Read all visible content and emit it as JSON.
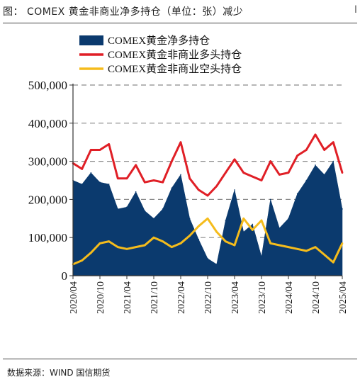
{
  "header": {
    "title": "图：  COMEX 黄金非商业净多持仓（单位：张）减少",
    "corner": "I"
  },
  "footer": {
    "source": "数据来源：WIND  国信期货"
  },
  "colors": {
    "net": "#0b3a6e",
    "long": "#e01f26",
    "short": "#f5bc1c",
    "grid": "#8a8a8a",
    "axis": "#333333"
  },
  "chart_data": {
    "type": "area",
    "title": "",
    "xlabel": "",
    "ylabel": "",
    "ylim": [
      0,
      500000
    ],
    "yticks": [
      0,
      100000,
      200000,
      300000,
      400000,
      500000
    ],
    "ytick_labels": [
      "0",
      "100,000",
      "200,000",
      "300,000",
      "400,000",
      "500,000"
    ],
    "xlim": [
      "2020-04",
      "2025-04"
    ],
    "xtick_labels": [
      "2020/04",
      "2020/10",
      "2021/04",
      "2021/10",
      "2022/04",
      "2022/10",
      "2023/04",
      "2023/10",
      "2024/04",
      "2024/10",
      "2025/04"
    ],
    "grid": "horizontal dashed",
    "legend_position": "top-left",
    "x": [
      "2020-04",
      "2020-06",
      "2020-08",
      "2020-10",
      "2020-12",
      "2021-02",
      "2021-04",
      "2021-06",
      "2021-08",
      "2021-10",
      "2021-12",
      "2022-02",
      "2022-04",
      "2022-06",
      "2022-08",
      "2022-10",
      "2022-12",
      "2023-02",
      "2023-04",
      "2023-06",
      "2023-08",
      "2023-10",
      "2023-12",
      "2024-02",
      "2024-04",
      "2024-06",
      "2024-08",
      "2024-10",
      "2024-12",
      "2025-02",
      "2025-04"
    ],
    "series": [
      {
        "name": "COMEX黄金净多持仓",
        "style": "area",
        "values": [
          250000,
          240000,
          270000,
          245000,
          240000,
          175000,
          180000,
          220000,
          170000,
          150000,
          175000,
          230000,
          265000,
          150000,
          95000,
          45000,
          30000,
          145000,
          225000,
          115000,
          135000,
          50000,
          200000,
          125000,
          150000,
          215000,
          250000,
          290000,
          265000,
          300000,
          175000
        ]
      },
      {
        "name": "COMEX黄金非商业多头持仓",
        "style": "line",
        "values": [
          295000,
          280000,
          330000,
          330000,
          345000,
          255000,
          255000,
          290000,
          245000,
          250000,
          245000,
          300000,
          350000,
          255000,
          225000,
          210000,
          235000,
          270000,
          305000,
          270000,
          260000,
          250000,
          300000,
          265000,
          270000,
          315000,
          330000,
          370000,
          330000,
          350000,
          270000
        ]
      },
      {
        "name": "COMEX黄金非商业空头持仓",
        "style": "line",
        "values": [
          30000,
          40000,
          60000,
          85000,
          90000,
          75000,
          70000,
          75000,
          80000,
          100000,
          90000,
          75000,
          85000,
          105000,
          130000,
          150000,
          115000,
          90000,
          80000,
          150000,
          120000,
          145000,
          85000,
          80000,
          75000,
          70000,
          65000,
          75000,
          55000,
          35000,
          85000
        ]
      }
    ]
  }
}
